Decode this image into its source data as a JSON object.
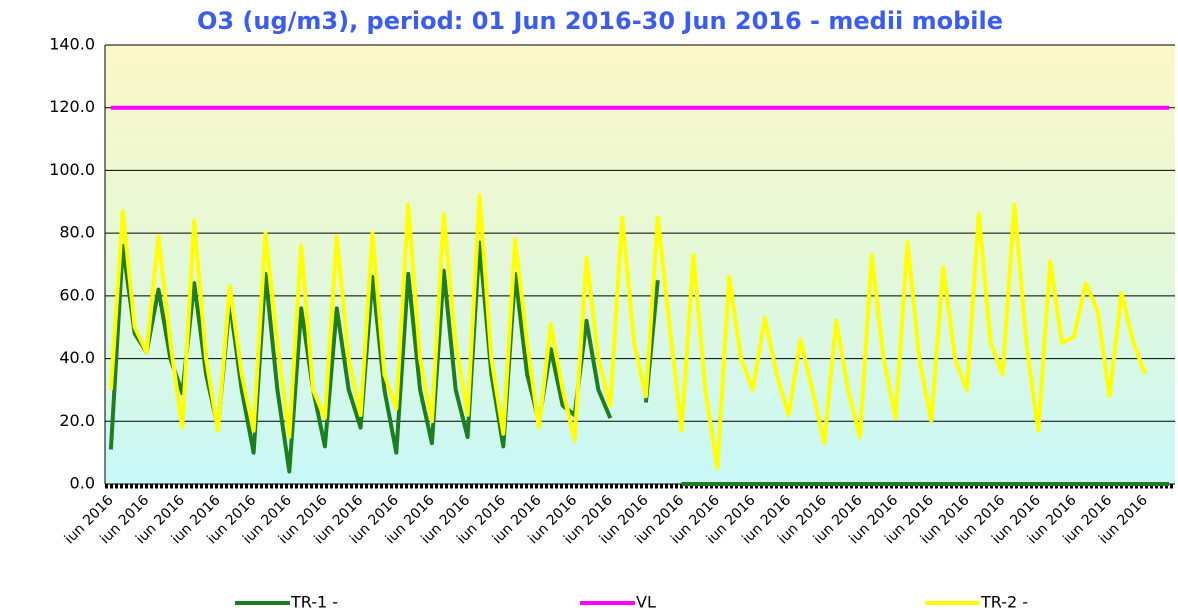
{
  "chart_data": {
    "type": "line",
    "title": "O3 (ug/m3), period: 01 Jun 2016-30 Jun 2016 - medii mobile",
    "categories": [
      "iun 2016",
      null,
      null,
      "iun 2016",
      null,
      null,
      "iun 2016",
      null,
      null,
      "iun 2016",
      null,
      null,
      "iun 2016",
      null,
      null,
      "iun 2016",
      null,
      null,
      "iun 2016",
      null,
      null,
      "iun 2016",
      null,
      null,
      "iun 2016",
      null,
      null,
      "iun 2016",
      null,
      null,
      "iun 2016",
      null,
      null,
      "iun 2016",
      null,
      null,
      "iun 2016",
      null,
      null,
      "iun 2016",
      null,
      null,
      "iun 2016",
      null,
      null,
      "iun 2016",
      null,
      null,
      "iun 2016",
      null,
      null,
      "iun 2016",
      null,
      null,
      "iun 2016",
      null,
      null,
      "iun 2016",
      null,
      null,
      "iun 2016",
      null,
      null,
      "iun 2016",
      null,
      null,
      "iun 2016",
      null,
      null,
      "iun 2016",
      null,
      null,
      "iun 2016",
      null,
      null,
      "iun 2016",
      null,
      null,
      "iun 2016",
      null,
      null,
      "iun 2016",
      null,
      null,
      "iun 2016",
      null,
      null,
      "iun 2016",
      null,
      null
    ],
    "series": [
      {
        "name": "TR-1 -",
        "color": "#1e7d1e",
        "values": [
          11,
          76,
          48,
          42,
          62,
          40,
          29,
          64,
          35,
          18,
          58,
          30,
          10,
          67,
          30,
          4,
          56,
          30,
          12,
          56,
          30,
          18,
          66,
          30,
          10,
          67,
          30,
          13,
          68,
          30,
          15,
          77,
          35,
          12,
          67,
          35,
          20,
          43,
          25,
          22,
          52,
          30,
          21,
          null,
          null,
          26,
          65,
          null,
          0,
          0,
          0,
          0,
          0,
          0,
          0,
          0,
          0,
          0,
          0,
          0,
          0,
          0,
          0,
          0,
          0,
          0,
          0,
          0,
          0,
          0,
          0,
          0,
          0,
          0,
          0,
          0,
          0,
          0,
          0,
          0,
          0,
          0,
          0,
          0,
          0,
          0,
          0,
          0,
          0,
          0
        ]
      },
      {
        "name": "VL",
        "color": "#ff00ff",
        "values": [
          120,
          120,
          120,
          120,
          120,
          120,
          120,
          120,
          120,
          120,
          120,
          120,
          120,
          120,
          120,
          120,
          120,
          120,
          120,
          120,
          120,
          120,
          120,
          120,
          120,
          120,
          120,
          120,
          120,
          120,
          120,
          120,
          120,
          120,
          120,
          120,
          120,
          120,
          120,
          120,
          120,
          120,
          120,
          120,
          120,
          120,
          120,
          120,
          120,
          120,
          120,
          120,
          120,
          120,
          120,
          120,
          120,
          120,
          120,
          120,
          120,
          120,
          120,
          120,
          120,
          120,
          120,
          120,
          120,
          120,
          120,
          120,
          120,
          120,
          120,
          120,
          120,
          120,
          120,
          120,
          120,
          120,
          120,
          120,
          120,
          120,
          120,
          120,
          120,
          120
        ]
      },
      {
        "name": "TR-2 -",
        "color": "#ffff00",
        "values": [
          30,
          87,
          50,
          42,
          79,
          45,
          18,
          84,
          40,
          17,
          63,
          35,
          17,
          80,
          45,
          15,
          76,
          30,
          21,
          79,
          40,
          22,
          80,
          35,
          24,
          89,
          40,
          20,
          86,
          45,
          22,
          92,
          40,
          16,
          78,
          45,
          18,
          51,
          30,
          14,
          72,
          40,
          25,
          85,
          45,
          28,
          85,
          50,
          17,
          73,
          30,
          5,
          66,
          40,
          30,
          53,
          35,
          22,
          46,
          30,
          13,
          52,
          30,
          15,
          73,
          40,
          21,
          77,
          40,
          20,
          69,
          40,
          30,
          86,
          45,
          35,
          89,
          45,
          17,
          71,
          45,
          47,
          64,
          55,
          28,
          61,
          45,
          35,
          null,
          null
        ]
      }
    ],
    "ylim": [
      0,
      140
    ],
    "yticks": [
      {
        "value": 0,
        "label": "0.0"
      },
      {
        "value": 20,
        "label": "20.0"
      },
      {
        "value": 40,
        "label": "40.0"
      },
      {
        "value": 60,
        "label": "60.0"
      },
      {
        "value": 80,
        "label": "80.0"
      },
      {
        "value": 100,
        "label": "100.0"
      },
      {
        "value": 120,
        "label": "120.0"
      },
      {
        "value": 140,
        "label": "140.0"
      }
    ],
    "grid": true
  }
}
